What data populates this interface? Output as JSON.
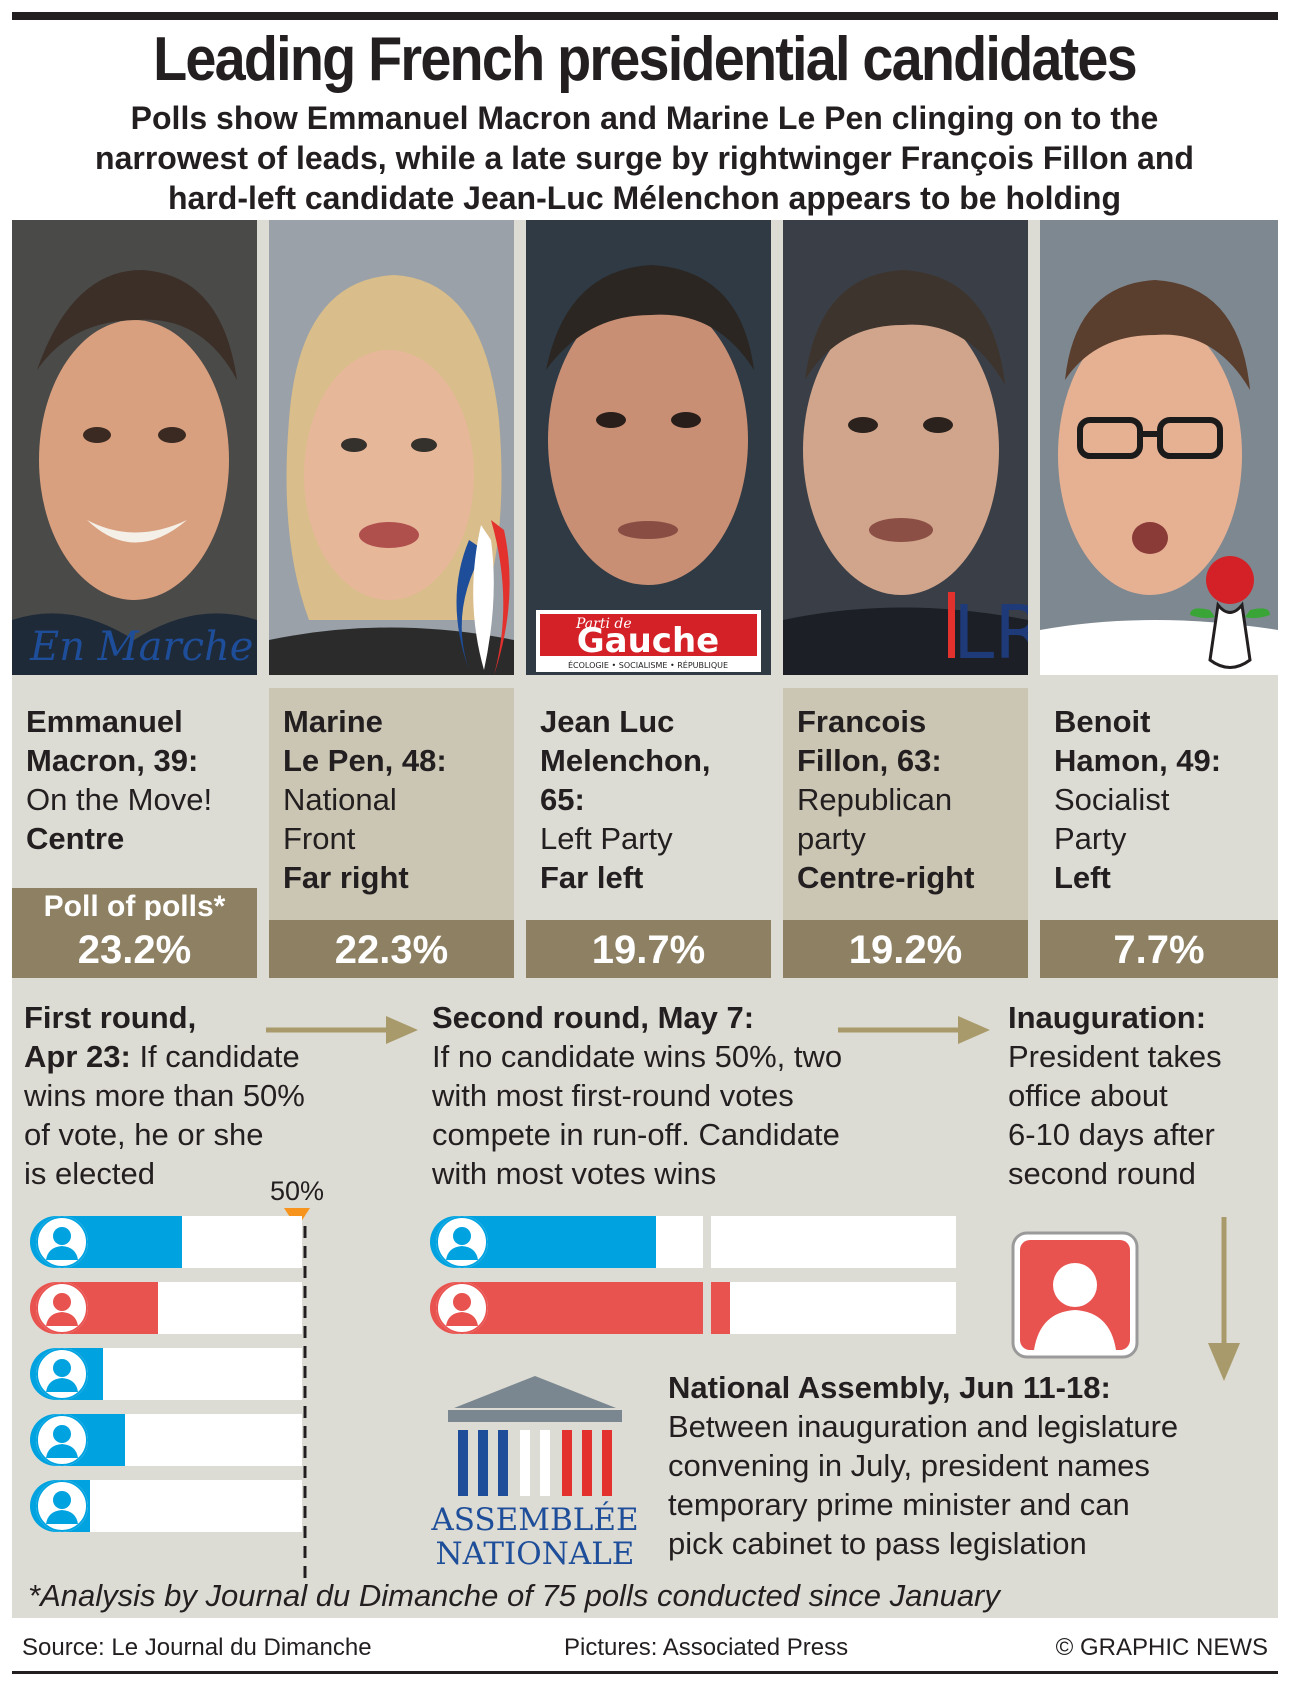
{
  "header": {
    "title": "Leading French presidential candidates",
    "subtitle_lines": [
      "Polls show Emmanuel Macron and Marine Le Pen clinging on to the",
      "narrowest of leads, while a late surge by rightwinger François Fillon and",
      "hard-left candidate Jean-Luc Mélenchon appears to be holding"
    ]
  },
  "logos": {
    "macron": "En Marche !",
    "melenchon_top": "Parti de",
    "melenchon_main": "Gauche",
    "melenchon_sub": "ÉCOLOGIE • SOCIALISME • RÉPUBLIQUE",
    "fillon": "LR",
    "assembly_line1": "ASSEMBLÉE",
    "assembly_line2": "NATIONALE"
  },
  "poll_header": "Poll of polls*",
  "candidates": [
    {
      "name_lines": [
        "Emmanuel",
        "Macron, 39:"
      ],
      "party_lines": [
        "On the Move!"
      ],
      "wing": "Centre",
      "poll": "23.2%",
      "poll_value": 23.2,
      "party_color": "#00a3e0"
    },
    {
      "name_lines": [
        "Marine",
        "Le Pen, 48:"
      ],
      "party_lines": [
        "National",
        "Front"
      ],
      "wing": "Far right",
      "poll": "22.3%",
      "poll_value": 22.3,
      "party_color": "#e8524f"
    },
    {
      "name_lines": [
        "Jean Luc",
        "Melenchon,",
        "65:"
      ],
      "party_lines": [
        "Left Party"
      ],
      "wing": "Far left",
      "poll": "19.7%",
      "poll_value": 19.7,
      "party_color": "#00a3e0"
    },
    {
      "name_lines": [
        "Francois",
        "Fillon, 63:"
      ],
      "party_lines": [
        "Republican",
        "party"
      ],
      "wing": "Centre-right",
      "poll": "19.2%",
      "poll_value": 19.2,
      "party_color": "#00a3e0"
    },
    {
      "name_lines": [
        "Benoit",
        "Hamon, 49:"
      ],
      "party_lines": [
        "Socialist",
        "Party"
      ],
      "wing": "Left",
      "poll": "7.7%",
      "poll_value": 7.7,
      "party_color": "#00a3e0"
    }
  ],
  "first_round": {
    "heading_bold_1": "First round,",
    "heading_bold_2": "Apr 23:",
    "text_first": "If candidate",
    "text_lines": [
      "wins more than 50%",
      "of vote, he or she",
      "is elected"
    ],
    "marker_label": "50%",
    "bar_values": [
      0.56,
      0.47,
      0.27,
      0.35,
      0.22
    ]
  },
  "second_round": {
    "heading": "Second round, May 7:",
    "text_lines": [
      "If no candidate wins 50%, two",
      "with most first-round votes",
      "compete in run-off. Candidate",
      "with most votes wins"
    ],
    "bar_values": [
      0.43,
      0.57
    ]
  },
  "inauguration": {
    "heading": "Inauguration:",
    "text_lines": [
      "President takes",
      "office about",
      "6-10 days after",
      "second round"
    ]
  },
  "assembly": {
    "heading": "National Assembly, Jun 11-18:",
    "text_lines": [
      "Between inauguration and legislature",
      "convening in July, president names",
      "temporary prime minister and can",
      "pick cabinet to pass legislation"
    ]
  },
  "footnote": "*Analysis by Journal du Dimanche of 75 polls conducted since January",
  "footer": {
    "source": "Source: Le Journal du Dimanche",
    "pictures": "Pictures: Associated Press",
    "credit": "© GRAPHIC NEWS"
  },
  "colors": {
    "blue": "#00a3e0",
    "red": "#e8524f",
    "gold": "#8e8163",
    "arrow": "#a89a6a",
    "marker": "#f7941d"
  }
}
